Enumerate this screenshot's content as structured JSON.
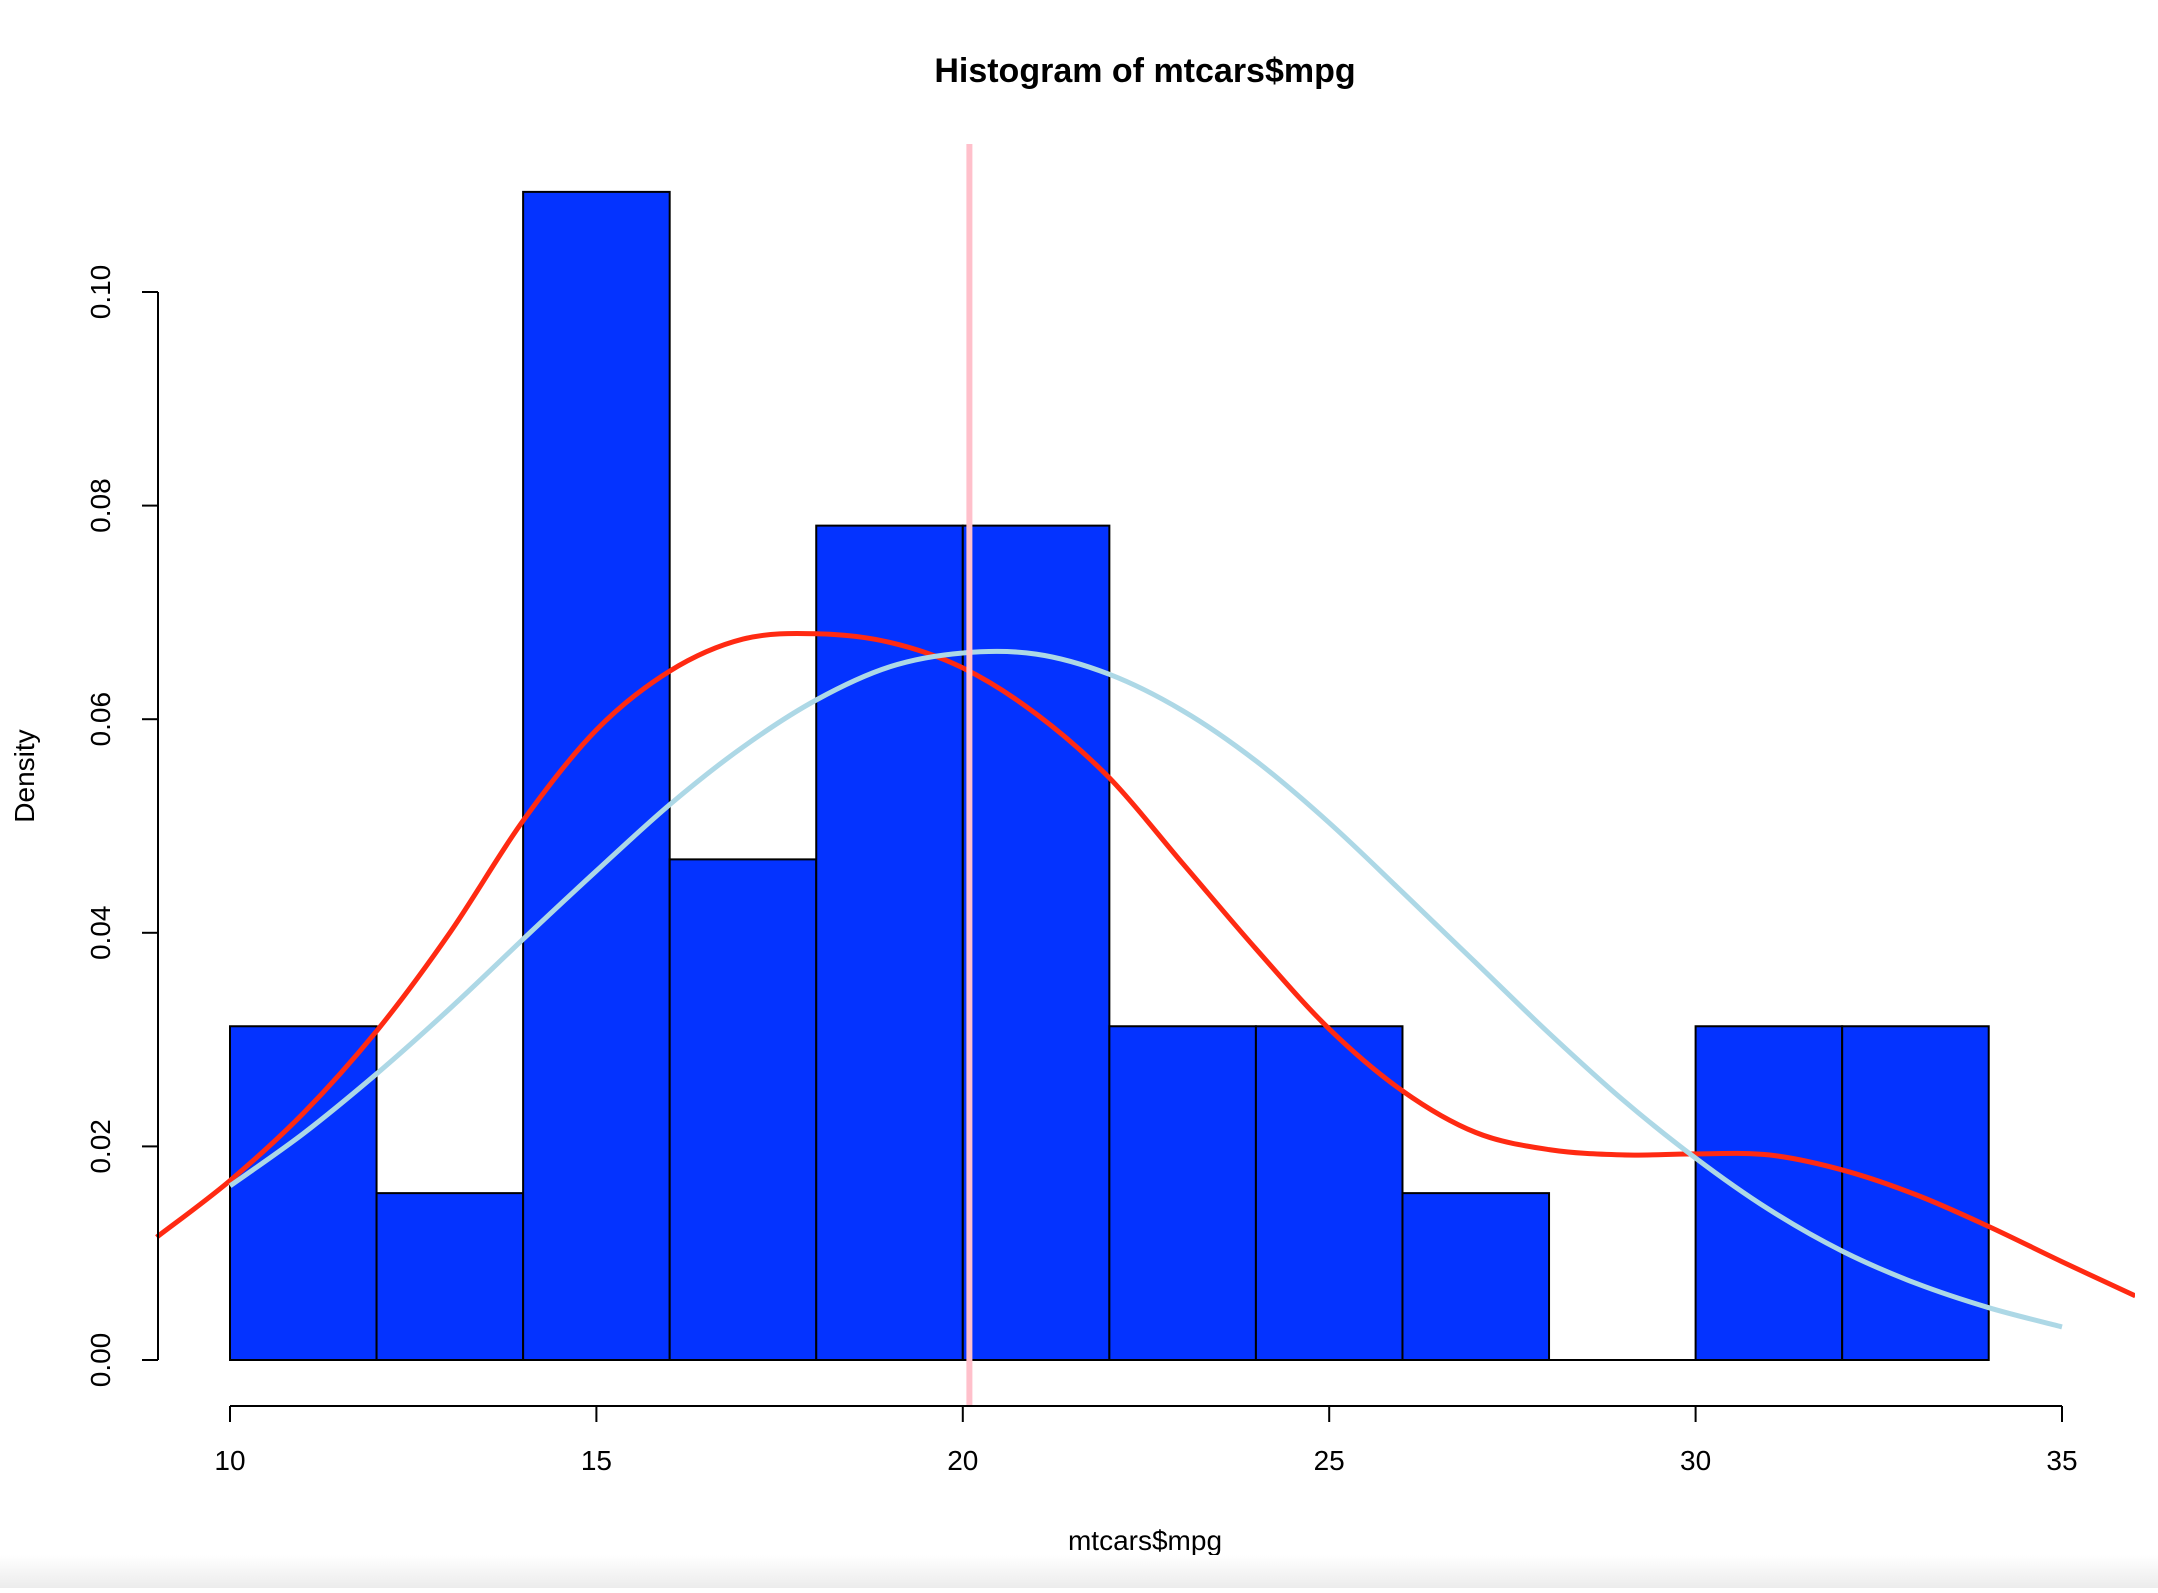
{
  "colors": {
    "bar_fill": "#0433ff",
    "bar_stroke": "#000000",
    "density_curve": "#ff2a12",
    "normal_curve": "#add8e6",
    "mean_line": "#ffc0cb",
    "axis": "#000000"
  },
  "chart_data": {
    "type": "bar",
    "subtype": "histogram",
    "title": "Histogram of mtcars$mpg",
    "xlabel": "mtcars$mpg",
    "ylabel": "Density",
    "xlim": [
      10,
      35
    ],
    "ylim": [
      0,
      0.11
    ],
    "x_ticks": [
      10,
      15,
      20,
      25,
      30,
      35
    ],
    "x_tick_labels": [
      "10",
      "15",
      "20",
      "25",
      "30",
      "35"
    ],
    "y_ticks": [
      0.0,
      0.02,
      0.04,
      0.06,
      0.08,
      0.1
    ],
    "y_tick_labels": [
      "0.00",
      "0.02",
      "0.04",
      "0.06",
      "0.08",
      "0.10"
    ],
    "grid": false,
    "bins": [
      {
        "x0": 10,
        "x1": 12,
        "density": 0.03125
      },
      {
        "x0": 12,
        "x1": 14,
        "density": 0.015625
      },
      {
        "x0": 14,
        "x1": 16,
        "density": 0.109375
      },
      {
        "x0": 16,
        "x1": 18,
        "density": 0.046875
      },
      {
        "x0": 18,
        "x1": 20,
        "density": 0.078125
      },
      {
        "x0": 20,
        "x1": 22,
        "density": 0.078125
      },
      {
        "x0": 22,
        "x1": 24,
        "density": 0.03125
      },
      {
        "x0": 24,
        "x1": 26,
        "density": 0.03125
      },
      {
        "x0": 26,
        "x1": 28,
        "density": 0.015625
      },
      {
        "x0": 28,
        "x1": 30,
        "density": 0.0
      },
      {
        "x0": 30,
        "x1": 32,
        "density": 0.03125
      },
      {
        "x0": 32,
        "x1": 34,
        "density": 0.03125
      }
    ],
    "density_curve": {
      "x": [
        9,
        10,
        11,
        12,
        13,
        14,
        15,
        16,
        17,
        18,
        19,
        20,
        21,
        22,
        23,
        24,
        25,
        26,
        27,
        28,
        29,
        30,
        31,
        32,
        33,
        34,
        35,
        36
      ],
      "y": [
        0.0115,
        0.0168,
        0.0231,
        0.0308,
        0.04,
        0.0505,
        0.059,
        0.0645,
        0.0675,
        0.068,
        0.0672,
        0.0648,
        0.0605,
        0.0545,
        0.0465,
        0.0385,
        0.031,
        0.0252,
        0.0213,
        0.0197,
        0.0192,
        0.0193,
        0.0192,
        0.0178,
        0.0155,
        0.0125,
        0.0092,
        0.006
      ]
    },
    "normal_curve": {
      "x": [
        10,
        11,
        12,
        13,
        14,
        15,
        16,
        17,
        18,
        19,
        20,
        21,
        22,
        23,
        24,
        25,
        26,
        27,
        28,
        29,
        30,
        31,
        32,
        33,
        34,
        35
      ],
      "y": [
        0.0163,
        0.0212,
        0.0268,
        0.0329,
        0.0394,
        0.0458,
        0.052,
        0.0574,
        0.0618,
        0.0649,
        0.0662,
        0.0661,
        0.0642,
        0.0608,
        0.0561,
        0.0503,
        0.0438,
        0.0372,
        0.0306,
        0.0244,
        0.0189,
        0.0141,
        0.0102,
        0.0072,
        0.0049,
        0.0031
      ]
    },
    "mean_line_x": 20.09
  }
}
